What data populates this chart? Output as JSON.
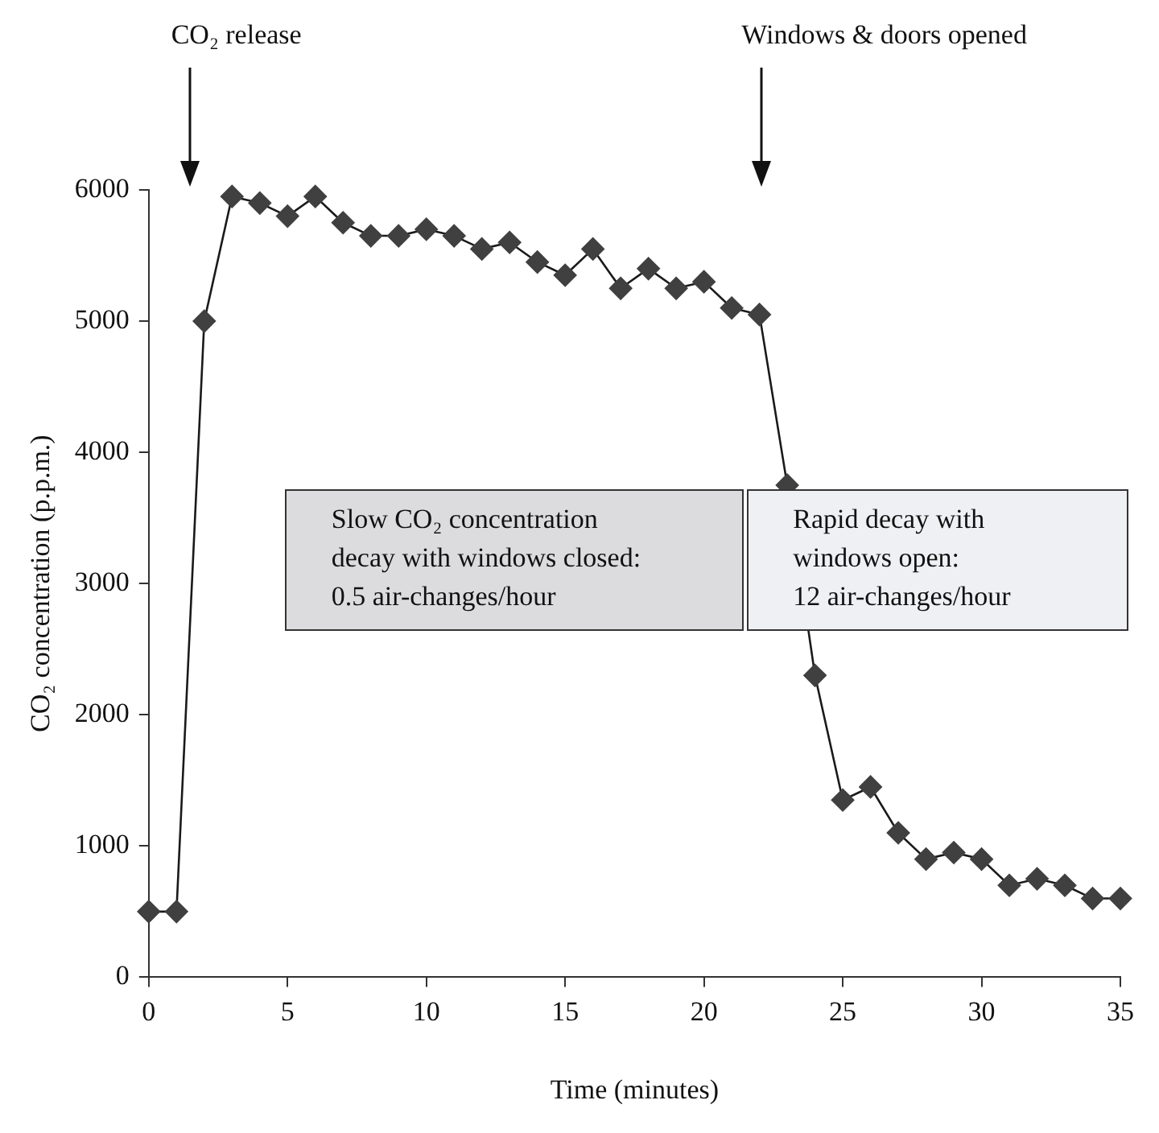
{
  "chart_data": {
    "type": "line",
    "xlabel": "Time (minutes)",
    "ylabel": "CO₂ concentration (p.p.m.)",
    "x": [
      0,
      1,
      2,
      3,
      4,
      5,
      6,
      7,
      8,
      9,
      10,
      11,
      12,
      13,
      14,
      15,
      16,
      17,
      18,
      19,
      20,
      21,
      22,
      23,
      24,
      25,
      26,
      27,
      28,
      29,
      30,
      31,
      32,
      33,
      34,
      35
    ],
    "series": [
      {
        "color": "#404040",
        "values": [
          500,
          500,
          5000,
          5950,
          5900,
          5800,
          5950,
          5750,
          5650,
          5650,
          5700,
          5650,
          5550,
          5600,
          5450,
          5350,
          5550,
          5250,
          5400,
          5250,
          5300,
          5100,
          5050,
          3750,
          2300,
          1350,
          1450,
          1100,
          900,
          950,
          900,
          700,
          750,
          700,
          600,
          600
        ]
      }
    ],
    "xlim": [
      0,
      35
    ],
    "xticks": [
      0,
      5,
      10,
      15,
      20,
      25,
      30,
      35
    ],
    "ylim": [
      0,
      6000
    ],
    "yticks": [
      0,
      1000,
      2000,
      3000,
      4000,
      5000,
      6000
    ],
    "grid": false,
    "legend": false,
    "marker": "diamond",
    "line_style": "solid",
    "annotations": [
      "CO₂ release",
      "Windows & doors opened",
      "Slow CO₂ concentration\ndecay with windows closed:\n0.5 air-changes/hour",
      "Rapid decay with\nwindows open:\n12 air-changes/hour"
    ]
  }
}
